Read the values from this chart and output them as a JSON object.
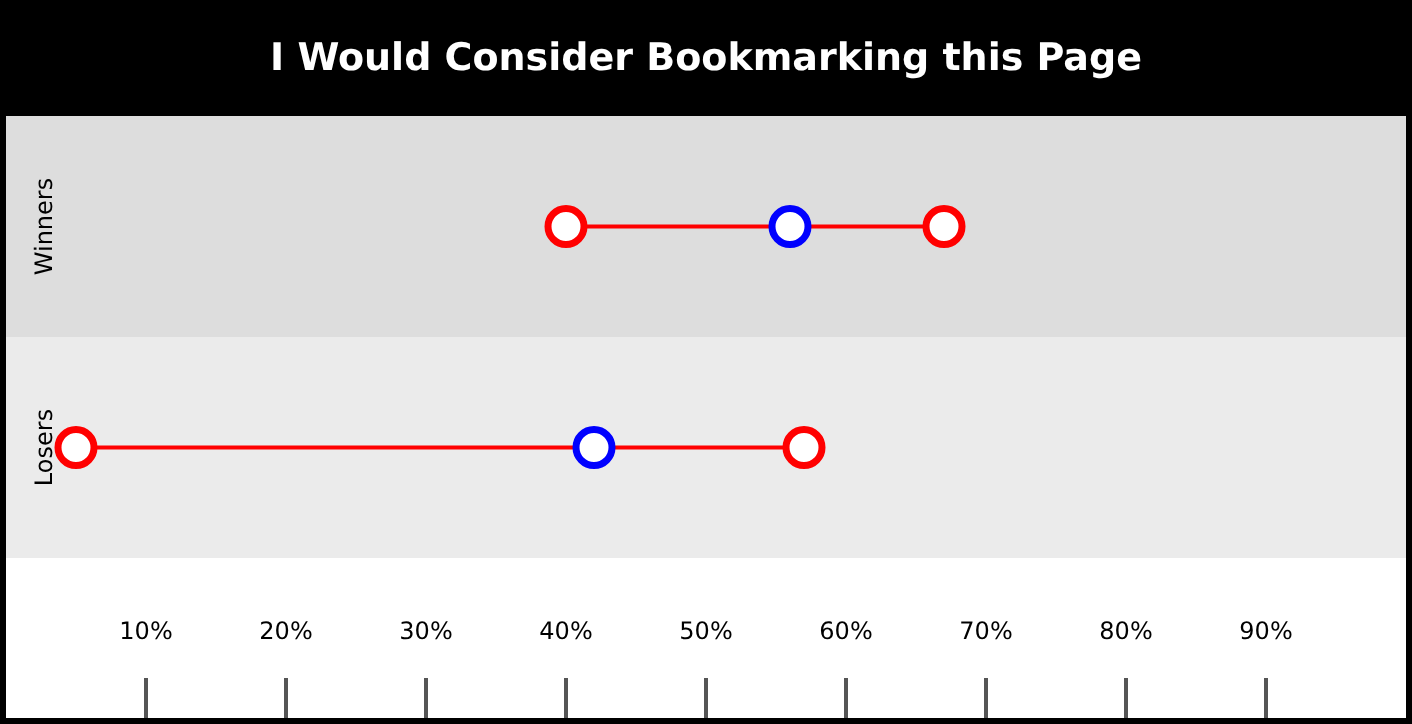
{
  "chart_data": {
    "type": "scatter",
    "title": "I Would Consider Bookmarking this Page",
    "orientation": "horizontal",
    "marker": "circle",
    "categories": [
      "Winners",
      "Losers"
    ],
    "xlim": [
      0,
      100
    ],
    "xticks": [
      {
        "value": 10,
        "label": "10%"
      },
      {
        "value": 20,
        "label": "20%"
      },
      {
        "value": 30,
        "label": "30%"
      },
      {
        "value": 40,
        "label": "40%"
      },
      {
        "value": 50,
        "label": "50%"
      },
      {
        "value": 60,
        "label": "60%"
      },
      {
        "value": 70,
        "label": "70%"
      },
      {
        "value": 80,
        "label": "80%"
      },
      {
        "value": 90,
        "label": "90%"
      }
    ],
    "bands": [
      {
        "axis": "y",
        "from": "Winners",
        "to": "Winners",
        "color": "#dddddd"
      },
      {
        "axis": "y",
        "from": "Losers",
        "to": "Losers",
        "color": "#ebebeb"
      }
    ],
    "series": [
      {
        "color": "#ff0000",
        "values": [
          40,
          5
        ]
      },
      {
        "color": "#ff0000",
        "values": [
          67,
          57
        ]
      },
      {
        "color": "#0000ff",
        "values": [
          56,
          42
        ]
      }
    ]
  }
}
